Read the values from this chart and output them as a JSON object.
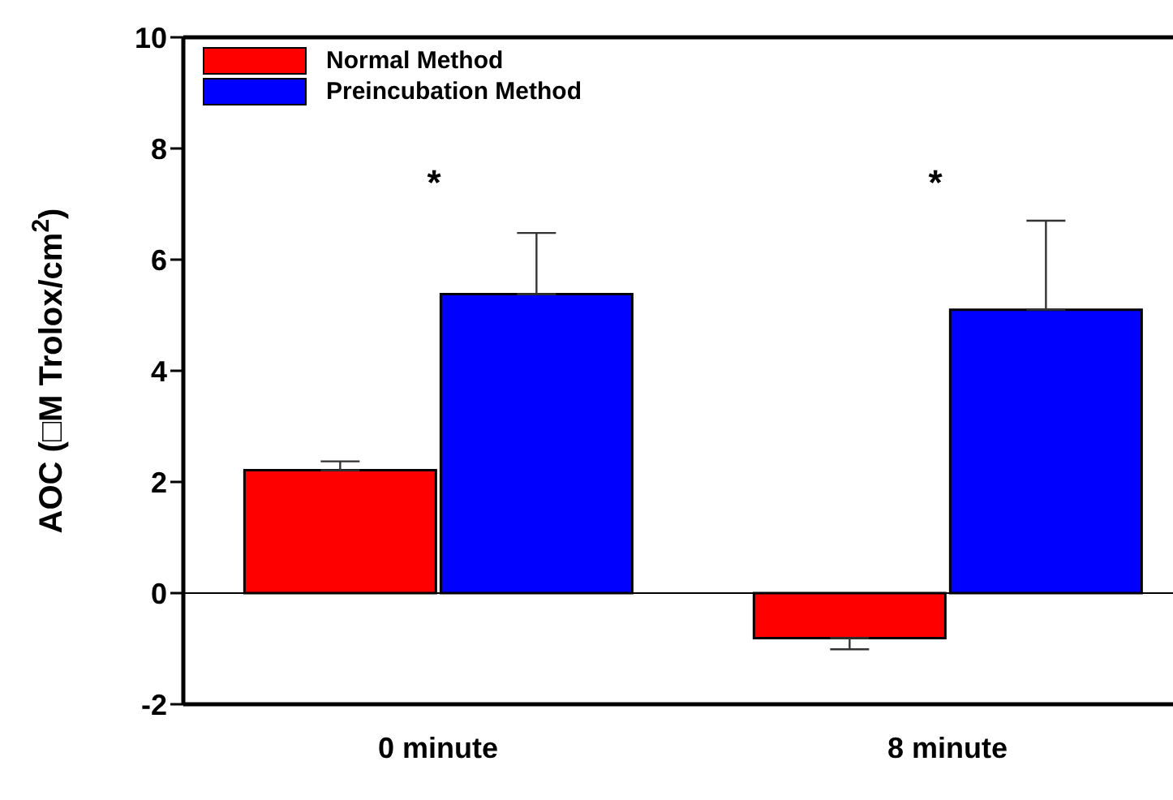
{
  "chart_data": {
    "type": "bar",
    "ylabel": "AOC (□M Trolox/cm$^{2}$)",
    "categories": [
      "0 minute",
      "8 minute"
    ],
    "series": [
      {
        "name": "Normal Method",
        "color": "#ff0000",
        "values": [
          2.21,
          -0.81
        ],
        "errors": [
          [
            2.21,
            2.37
          ],
          [
            -1.01,
            -0.81
          ]
        ]
      },
      {
        "name": "Preincubation Method",
        "color": "#0000ff",
        "values": [
          5.38,
          5.1
        ],
        "errors": [
          [
            5.38,
            6.48
          ],
          [
            5.1,
            6.7
          ]
        ]
      }
    ],
    "ylim": [
      -2,
      10
    ],
    "yticks": [
      -2,
      0,
      2,
      4,
      6,
      8,
      10
    ],
    "legend": "top left",
    "ref_lines": [
      {
        "axis": "y",
        "value": 0,
        "color": "#000000"
      }
    ],
    "annotations": [
      "*",
      "*"
    ]
  }
}
